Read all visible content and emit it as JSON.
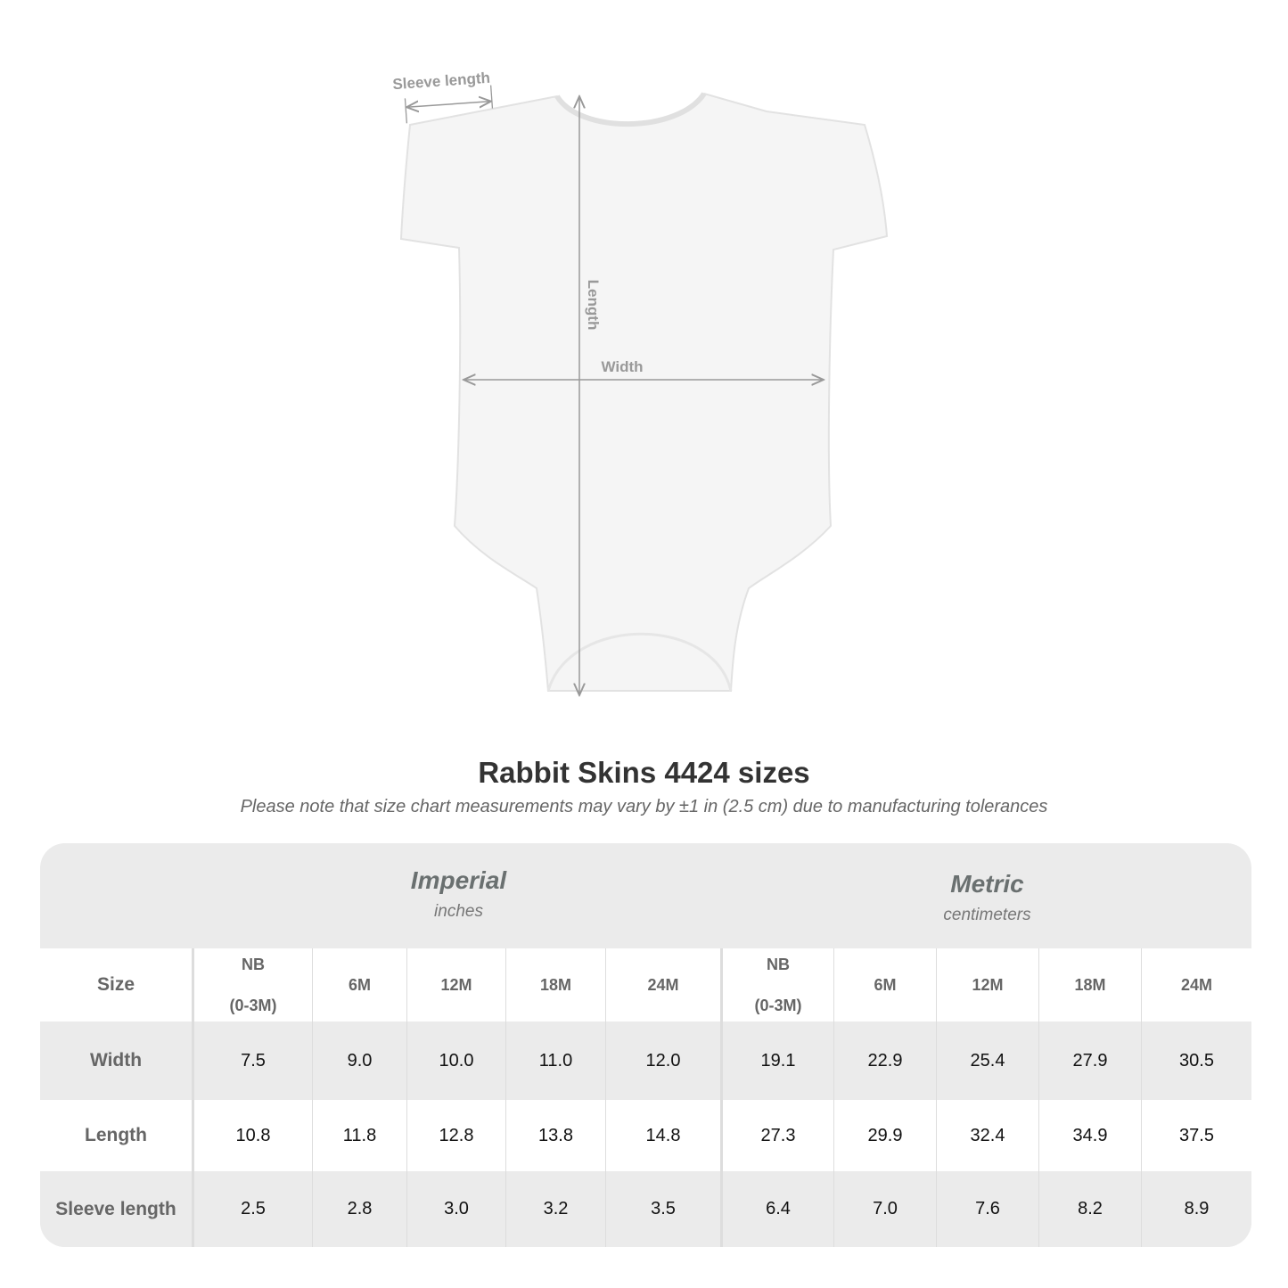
{
  "figure": {
    "labels": {
      "sleeve": "Sleeve length",
      "length": "Length",
      "width": "Width"
    }
  },
  "title": "Rabbit Skins 4424 sizes",
  "subtitle": "Please note that size chart measurements may vary by ±1 in (2.5 cm) due to manufacturing tolerances",
  "table": {
    "imperial": {
      "name": "Imperial",
      "unit": "inches"
    },
    "metric": {
      "name": "Metric",
      "unit": "centimeters"
    },
    "size_label": "Size",
    "sizes": [
      [
        "NB",
        "(0-3M)"
      ],
      [
        "6M",
        ""
      ],
      [
        "12M",
        ""
      ],
      [
        "18M",
        ""
      ],
      [
        "24M",
        ""
      ],
      [
        "NB",
        "(0-3M)"
      ],
      [
        "6M",
        ""
      ],
      [
        "12M",
        ""
      ],
      [
        "18M",
        ""
      ],
      [
        "24M",
        ""
      ]
    ],
    "rows": [
      {
        "label": "Width",
        "values": [
          "7.5",
          "9.0",
          "10.0",
          "11.0",
          "12.0",
          "19.1",
          "22.9",
          "25.4",
          "27.9",
          "30.5"
        ]
      },
      {
        "label": "Length",
        "values": [
          "10.8",
          "11.8",
          "12.8",
          "13.8",
          "14.8",
          "27.3",
          "29.9",
          "32.4",
          "34.9",
          "37.5"
        ]
      },
      {
        "label": "Sleeve length",
        "values": [
          "2.5",
          "2.8",
          "3.0",
          "3.2",
          "3.5",
          "6.4",
          "7.0",
          "7.6",
          "8.2",
          "8.9"
        ]
      }
    ]
  },
  "colors": {
    "header_bg": "#ebebeb",
    "label_text": "#666666",
    "measure_line": "#999999"
  }
}
